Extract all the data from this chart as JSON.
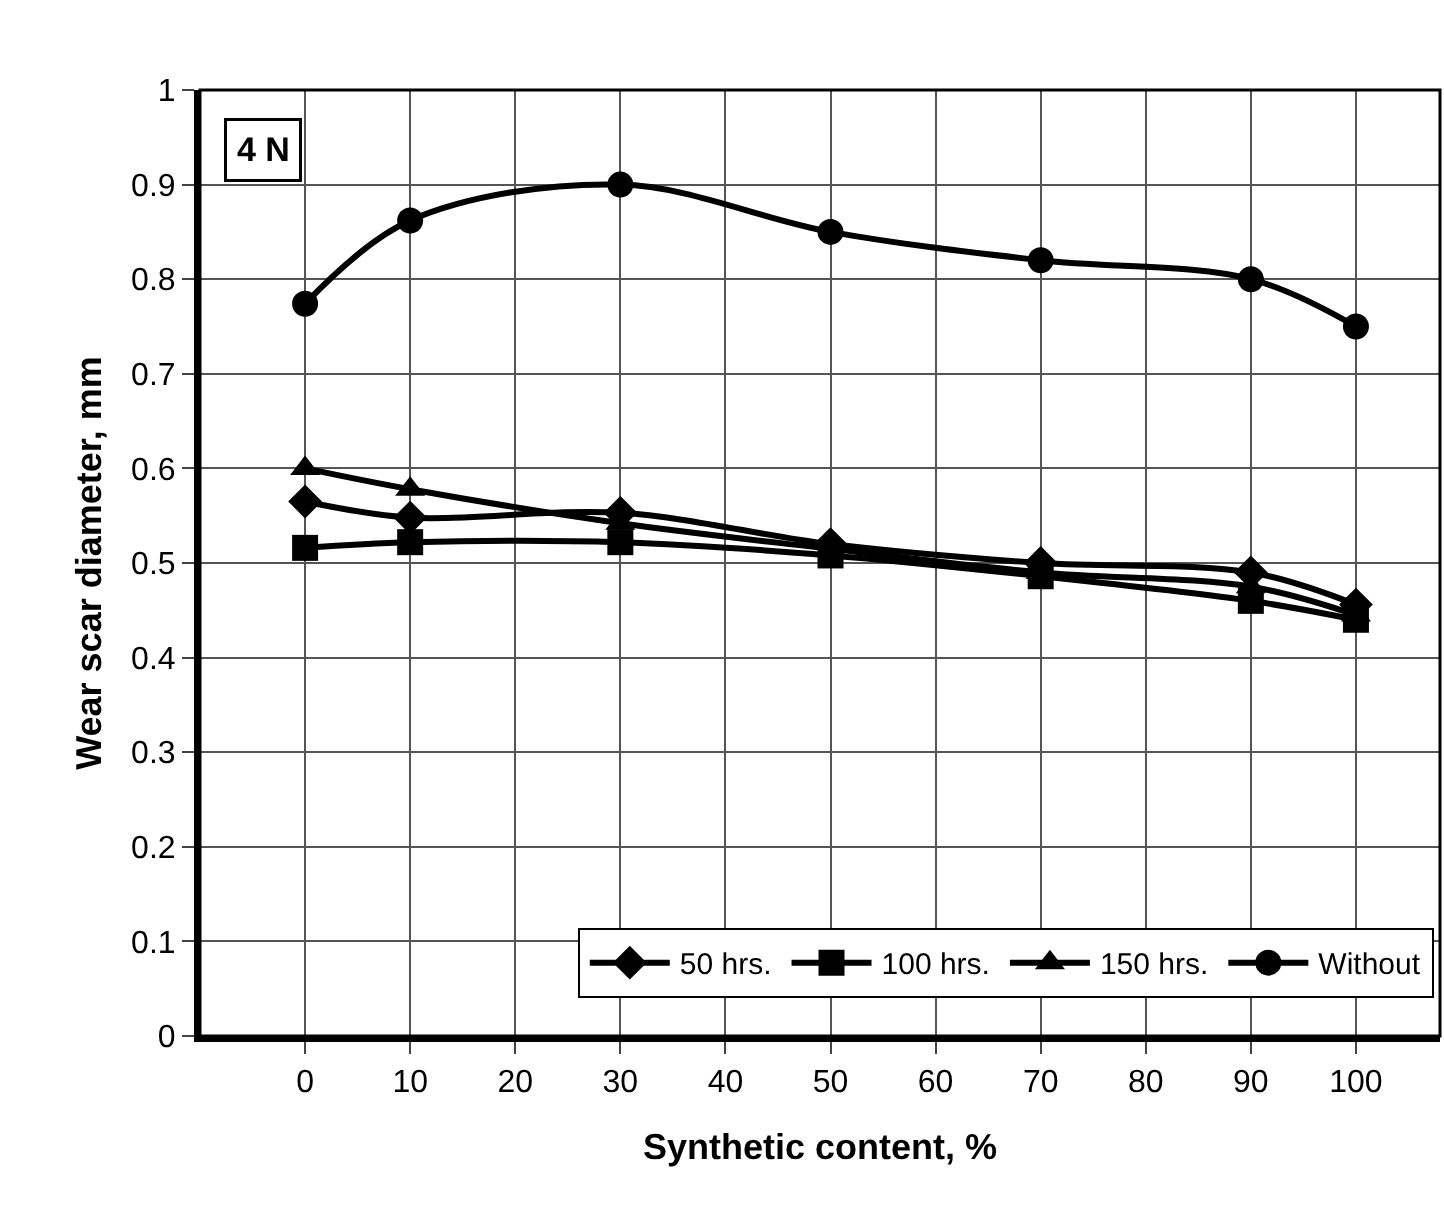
{
  "chart_data": {
    "type": "line",
    "xlabel": "Synthetic content, %",
    "ylabel": "Wear scar diameter, mm",
    "x": [
      0,
      10,
      30,
      50,
      70,
      90,
      100
    ],
    "series": [
      {
        "name": "50 hrs.",
        "color": "#000000",
        "marker": "diamond",
        "values": [
          0.565,
          0.548,
          0.553,
          0.52,
          0.5,
          0.49,
          0.456
        ]
      },
      {
        "name": "100 hrs.",
        "color": "#000000",
        "marker": "square",
        "values": [
          0.516,
          0.522,
          0.522,
          0.508,
          0.486,
          0.46,
          0.44
        ]
      },
      {
        "name": "150 hrs.",
        "color": "#000000",
        "marker": "triangle",
        "values": [
          0.6,
          0.578,
          0.542,
          0.515,
          0.49,
          0.475,
          0.445
        ]
      },
      {
        "name": "Without",
        "color": "#000000",
        "marker": "circle",
        "values": [
          0.774,
          0.862,
          0.9,
          0.85,
          0.82,
          0.8,
          0.75
        ]
      }
    ],
    "annotations": [
      "4 N"
    ],
    "xlim": [
      -10,
      108
    ],
    "xticks": [
      0,
      10,
      20,
      30,
      40,
      50,
      60,
      70,
      80,
      90,
      100
    ],
    "ylim": [
      0,
      1
    ],
    "yticks": [
      0,
      0.1,
      0.2,
      0.3,
      0.4,
      0.5,
      0.6,
      0.7,
      0.8,
      0.9,
      1
    ],
    "grid": true,
    "legend": "bottom right",
    "line_style": "solid"
  }
}
